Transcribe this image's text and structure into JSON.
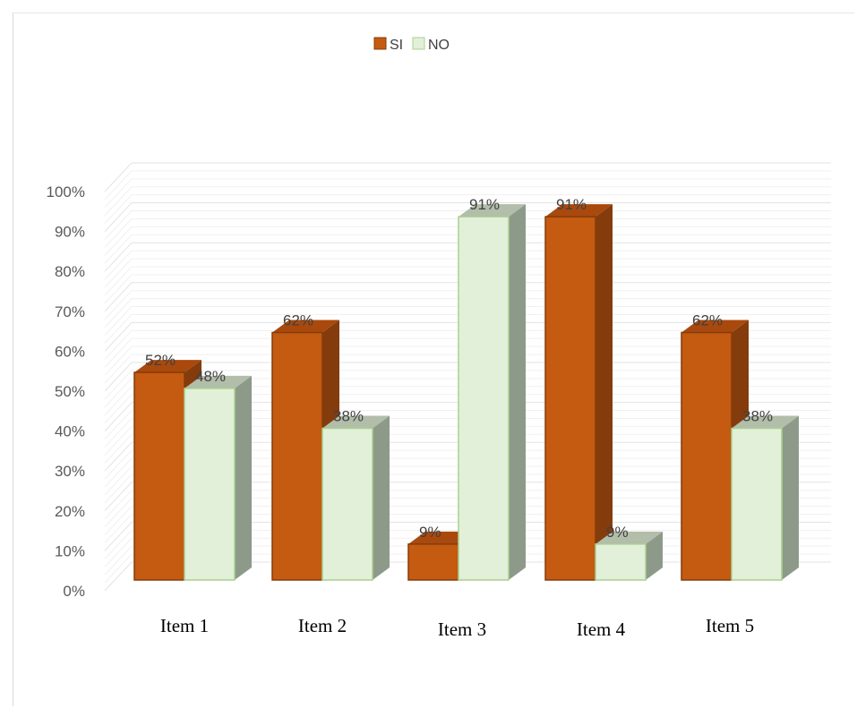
{
  "chart_data": {
    "type": "bar",
    "categories": [
      "Item 1",
      "Item 2",
      "Item 3",
      "Item 4",
      "Item 5"
    ],
    "series": [
      {
        "name": "SI",
        "values": [
          52,
          62,
          9,
          91,
          62
        ],
        "labels": [
          "52%",
          "62%",
          "9%",
          "91%",
          "62%"
        ],
        "color": "#C55A11"
      },
      {
        "name": "NO",
        "values": [
          48,
          38,
          91,
          9,
          38
        ],
        "labels": [
          "48%",
          "38%",
          "91%",
          "9%",
          "38%"
        ],
        "color": "#E2F0D9"
      }
    ],
    "yticks": [
      "0%",
      "10%",
      "20%",
      "30%",
      "40%",
      "50%",
      "60%",
      "70%",
      "80%",
      "90%",
      "100%"
    ],
    "ylim": [
      0,
      100
    ],
    "grid": true,
    "legend": "top-center",
    "style": "3d-clustered-column"
  }
}
